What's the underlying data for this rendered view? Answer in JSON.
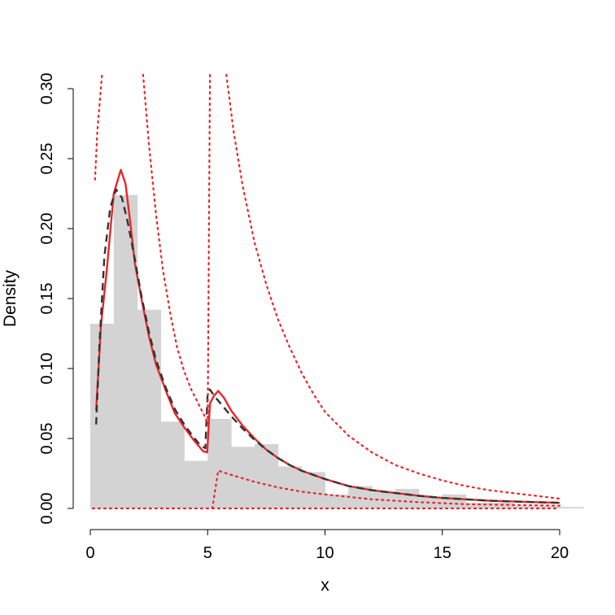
{
  "chart_data": {
    "type": "histogram",
    "xlabel": "x",
    "ylabel": "Density",
    "xlim": [
      0,
      20
    ],
    "ylim": [
      0,
      0.3
    ],
    "x_ticks": [
      "0",
      "5",
      "10",
      "15",
      "20"
    ],
    "y_ticks": [
      "0.00",
      "0.05",
      "0.10",
      "0.15",
      "0.20",
      "0.25",
      "0.30"
    ],
    "grid": false,
    "legend": "none",
    "histogram": {
      "color": "#d3d3d3",
      "bins": [
        {
          "from": 0,
          "to": 1,
          "density": 0.132
        },
        {
          "from": 1,
          "to": 2,
          "density": 0.224
        },
        {
          "from": 2,
          "to": 3,
          "density": 0.142
        },
        {
          "from": 3,
          "to": 4,
          "density": 0.062
        },
        {
          "from": 4,
          "to": 5,
          "density": 0.034
        },
        {
          "from": 5,
          "to": 6,
          "density": 0.064
        },
        {
          "from": 6,
          "to": 7,
          "density": 0.044
        },
        {
          "from": 7,
          "to": 8,
          "density": 0.046
        },
        {
          "from": 8,
          "to": 9,
          "density": 0.03
        },
        {
          "from": 9,
          "to": 10,
          "density": 0.026
        },
        {
          "from": 10,
          "to": 11,
          "density": 0.01
        },
        {
          "from": 11,
          "to": 12,
          "density": 0.016
        },
        {
          "from": 12,
          "to": 13,
          "density": 0.012
        },
        {
          "from": 13,
          "to": 14,
          "density": 0.014
        },
        {
          "from": 14,
          "to": 15,
          "density": 0.008
        },
        {
          "from": 15,
          "to": 16,
          "density": 0.01
        },
        {
          "from": 16,
          "to": 17,
          "density": 0.004
        },
        {
          "from": 17,
          "to": 18,
          "density": 0.004
        },
        {
          "from": 18,
          "to": 19,
          "density": 0.002
        },
        {
          "from": 19,
          "to": 20,
          "density": 0.002
        },
        {
          "from": 20,
          "to": 21,
          "density": 0.001
        }
      ]
    },
    "series": [
      {
        "style": "solid",
        "color": "#e8262a",
        "points": [
          [
            0.25,
            0.07
          ],
          [
            0.45,
            0.13
          ],
          [
            0.7,
            0.17
          ],
          [
            1.0,
            0.225
          ],
          [
            1.3,
            0.242
          ],
          [
            1.5,
            0.232
          ],
          [
            1.7,
            0.205
          ],
          [
            1.9,
            0.175
          ],
          [
            2.2,
            0.148
          ],
          [
            2.5,
            0.123
          ],
          [
            2.8,
            0.103
          ],
          [
            3.2,
            0.085
          ],
          [
            3.6,
            0.068
          ],
          [
            4.0,
            0.058
          ],
          [
            4.4,
            0.049
          ],
          [
            4.8,
            0.041
          ],
          [
            4.98,
            0.04
          ],
          [
            5.1,
            0.075
          ],
          [
            5.25,
            0.08
          ],
          [
            5.45,
            0.084
          ],
          [
            5.7,
            0.079
          ],
          [
            6.0,
            0.07
          ],
          [
            6.5,
            0.059
          ],
          [
            7.0,
            0.05
          ],
          [
            7.5,
            0.042
          ],
          [
            8.0,
            0.036
          ],
          [
            8.5,
            0.031
          ],
          [
            9.0,
            0.027
          ],
          [
            10,
            0.021
          ],
          [
            11,
            0.016
          ],
          [
            12,
            0.013
          ],
          [
            13,
            0.011
          ],
          [
            14,
            0.009
          ],
          [
            15,
            0.0075
          ],
          [
            16,
            0.0065
          ],
          [
            17,
            0.0055
          ],
          [
            18,
            0.005
          ],
          [
            19,
            0.0045
          ],
          [
            20,
            0.004
          ]
        ]
      },
      {
        "style": "dashed",
        "color": "#333333",
        "points": [
          [
            0.25,
            0.06
          ],
          [
            0.4,
            0.12
          ],
          [
            0.6,
            0.18
          ],
          [
            0.85,
            0.215
          ],
          [
            1.1,
            0.228
          ],
          [
            1.35,
            0.222
          ],
          [
            1.6,
            0.204
          ],
          [
            1.9,
            0.178
          ],
          [
            2.2,
            0.15
          ],
          [
            2.5,
            0.126
          ],
          [
            2.8,
            0.106
          ],
          [
            3.2,
            0.087
          ],
          [
            3.6,
            0.071
          ],
          [
            4.0,
            0.06
          ],
          [
            4.4,
            0.051
          ],
          [
            4.7,
            0.045
          ],
          [
            4.9,
            0.043
          ],
          [
            5.0,
            0.083
          ],
          [
            5.1,
            0.085
          ],
          [
            5.3,
            0.08
          ],
          [
            5.6,
            0.074
          ],
          [
            6.0,
            0.066
          ],
          [
            6.5,
            0.057
          ],
          [
            7.0,
            0.049
          ],
          [
            7.5,
            0.042
          ],
          [
            8.0,
            0.036
          ],
          [
            8.5,
            0.031
          ],
          [
            9.0,
            0.027
          ],
          [
            10,
            0.021
          ],
          [
            11,
            0.016
          ],
          [
            12,
            0.013
          ],
          [
            13,
            0.011
          ],
          [
            14,
            0.009
          ],
          [
            15,
            0.0075
          ],
          [
            16,
            0.0065
          ],
          [
            17,
            0.0055
          ],
          [
            18,
            0.005
          ],
          [
            19,
            0.0045
          ],
          [
            20,
            0.004
          ]
        ]
      },
      {
        "style": "dotted",
        "color": "#e8262a",
        "points": [
          [
            0.2,
            0.235
          ],
          [
            0.3,
            0.27
          ],
          [
            0.5,
            0.31
          ]
        ]
      },
      {
        "style": "dotted",
        "color": "#e8262a",
        "points": [
          [
            2.25,
            0.31
          ],
          [
            2.5,
            0.26
          ],
          [
            2.8,
            0.21
          ],
          [
            3.1,
            0.17
          ],
          [
            3.4,
            0.14
          ],
          [
            3.7,
            0.115
          ],
          [
            4.0,
            0.098
          ],
          [
            4.3,
            0.085
          ],
          [
            4.6,
            0.075
          ],
          [
            4.9,
            0.065
          ],
          [
            5.0,
            0.06
          ],
          [
            5.1,
            0.31
          ]
        ]
      },
      {
        "style": "dotted",
        "color": "#e8262a",
        "points": [
          [
            5.8,
            0.31
          ],
          [
            6.1,
            0.27
          ],
          [
            6.5,
            0.23
          ],
          [
            7.0,
            0.19
          ],
          [
            7.5,
            0.16
          ],
          [
            8.0,
            0.135
          ],
          [
            8.5,
            0.115
          ],
          [
            9.0,
            0.097
          ],
          [
            9.5,
            0.082
          ],
          [
            10,
            0.069
          ],
          [
            11,
            0.052
          ],
          [
            12,
            0.04
          ],
          [
            13,
            0.031
          ],
          [
            14,
            0.025
          ],
          [
            15,
            0.02
          ],
          [
            16,
            0.016
          ],
          [
            17,
            0.013
          ],
          [
            18,
            0.011
          ],
          [
            19,
            0.009
          ],
          [
            20,
            0.007
          ]
        ]
      },
      {
        "style": "dotted",
        "color": "#e8262a",
        "points": [
          [
            0.1,
            0.0
          ],
          [
            5.2,
            0.0
          ],
          [
            5.45,
            0.027
          ],
          [
            6.0,
            0.024
          ],
          [
            7.0,
            0.019
          ],
          [
            8.0,
            0.015
          ],
          [
            9.0,
            0.012
          ],
          [
            10,
            0.01
          ],
          [
            12,
            0.0065
          ],
          [
            14,
            0.0045
          ],
          [
            16,
            0.003
          ],
          [
            18,
            0.0025
          ],
          [
            20,
            0.002
          ]
        ]
      },
      {
        "style": "dotted",
        "color": "#e8262a",
        "points": [
          [
            5.2,
            0.0
          ],
          [
            20,
            0.0
          ]
        ]
      }
    ]
  }
}
